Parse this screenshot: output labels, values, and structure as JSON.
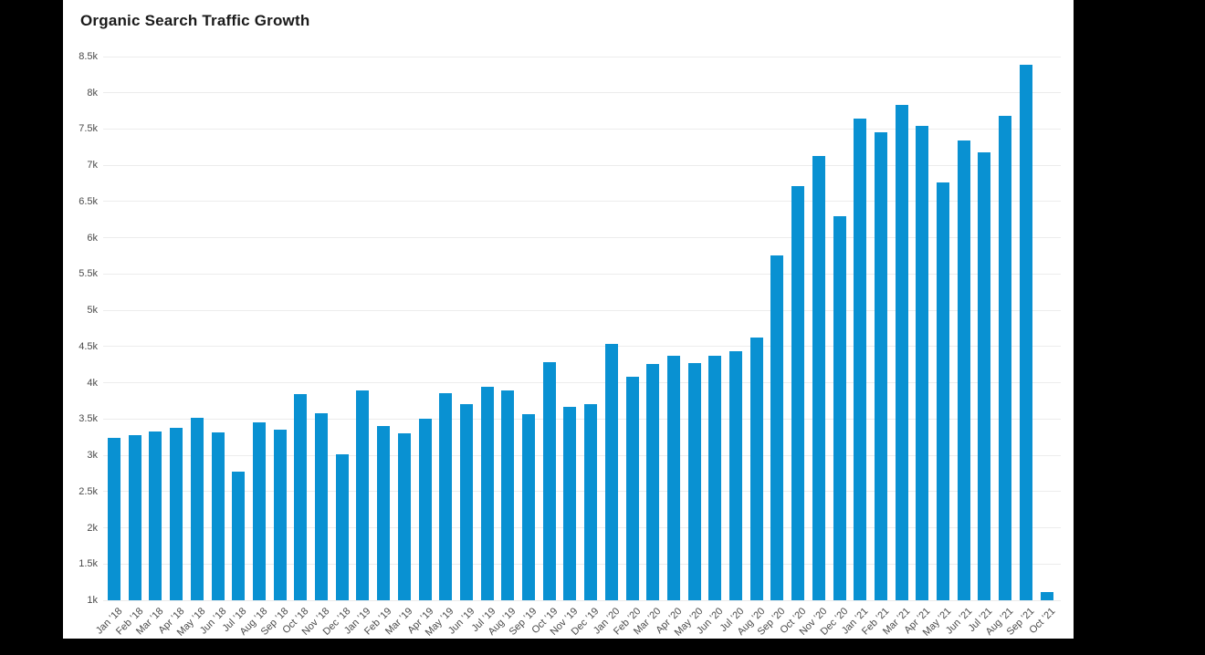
{
  "colors": {
    "page_background": "#000000",
    "panel_background": "#ffffff",
    "bar": "#0991d2",
    "gridline": "#ececec",
    "axis_label": "#4a4a4a",
    "title": "#1a1a1a"
  },
  "chart_data": {
    "type": "bar",
    "title": "Organic Search Traffic Growth",
    "xlabel": "",
    "ylabel": "",
    "ylim": [
      1000,
      8500
    ],
    "ytick_step": 500,
    "ytick_suffix": "k",
    "grid": true,
    "legend": false,
    "categories": [
      "Jan ’18",
      "Feb ’18",
      "Mar ’18",
      "Apr ’18",
      "May ’18",
      "Jun ’18",
      "Jul ’18",
      "Aug ’18",
      "Sep ’18",
      "Oct ’18",
      "Nov ’18",
      "Dec ’18",
      "Jan ’19",
      "Feb ’19",
      "Mar ’19",
      "Apr ’19",
      "May ’19",
      "Jun ’19",
      "Jul ’19",
      "Aug ’19",
      "Sep ’19",
      "Oct ’19",
      "Nov ’19",
      "Dec ’19",
      "Jan ’20",
      "Feb ’20",
      "Mar ’20",
      "Apr ’20",
      "May ’20",
      "Jun ’20",
      "Jul ’20",
      "Aug ’20",
      "Sep ’20",
      "Oct ’20",
      "Nov ’20",
      "Dec ’20",
      "Jan ’21",
      "Feb ’21",
      "Mar ’21",
      "Apr ’21",
      "May ’21",
      "Jun ’21",
      "Jul ’21",
      "Aug ’21",
      "Sep ’21",
      "Oct ’21"
    ],
    "values": [
      3240,
      3280,
      3330,
      3380,
      3520,
      3320,
      2770,
      3460,
      3360,
      3850,
      3580,
      3020,
      3900,
      3410,
      3300,
      3510,
      3860,
      3710,
      3950,
      3900,
      3570,
      4290,
      3670,
      3700,
      4540,
      4080,
      4260,
      4370,
      4270,
      4370,
      4440,
      4630,
      5760,
      6720,
      7130,
      6300,
      7650,
      7450,
      7830,
      7550,
      6760,
      7340,
      7180,
      7680,
      8390,
      1110
    ],
    "ytick_labels": [
      "1k",
      "1.5k",
      "2k",
      "2.5k",
      "3k",
      "3.5k",
      "4k",
      "4.5k",
      "5k",
      "5.5k",
      "6k",
      "6.5k",
      "7k",
      "7.5k",
      "8k",
      "8.5k"
    ]
  }
}
